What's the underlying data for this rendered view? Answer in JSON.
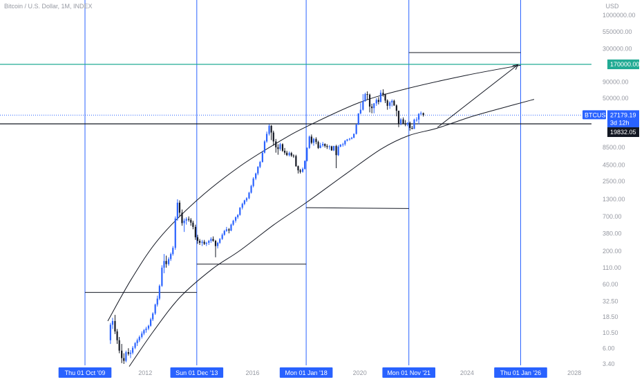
{
  "header": {
    "legend": "Bitcoin / U.S. Dollar, 1M, INDEX"
  },
  "chart_data": {
    "type": "candlestick",
    "title": "Bitcoin / U.S. Dollar, 1M, INDEX",
    "currency": "USD",
    "scale": "log",
    "y_ticks": [
      1000000,
      550000,
      300000,
      170000,
      90000,
      50000,
      27179.19,
      19832.05,
      8500,
      4500,
      2500,
      1300,
      700,
      380,
      200,
      110,
      60,
      32.5,
      18.5,
      10.5,
      6,
      3.4
    ],
    "y_tick_labels": [
      "1000000.00",
      "550000.00",
      "300000.00",
      "170000.00",
      "90000.00",
      "50000.00",
      "27179.19",
      "19832.05",
      "8500.00",
      "4500.00",
      "2500.00",
      "1300.00",
      "700.00",
      "380.00",
      "200.00",
      "110.00",
      "60.00",
      "32.50",
      "18.50",
      "10.50",
      "6.00",
      "3.40"
    ],
    "x_tick_labels": [
      {
        "label": "Thu 01 Oct '09",
        "year": 2009.75,
        "highlight": true
      },
      {
        "label": "2012",
        "year": 2012.0,
        "highlight": false
      },
      {
        "label": "Sun 01 Dec '13",
        "year": 2013.92,
        "highlight": true
      },
      {
        "label": "2016",
        "year": 2016.0,
        "highlight": false
      },
      {
        "label": "Mon 01 Jan '18",
        "year": 2018.0,
        "highlight": true
      },
      {
        "label": "2020",
        "year": 2020.0,
        "highlight": false
      },
      {
        "label": "Mon 01 Nov '21",
        "year": 2021.83,
        "highlight": true
      },
      {
        "label": "2024",
        "year": 2024.0,
        "highlight": false
      },
      {
        "label": "Thu 01 Jan '26",
        "year": 2026.0,
        "highlight": true
      },
      {
        "label": "2028",
        "year": 2028.0,
        "highlight": false
      }
    ],
    "current_price": {
      "symbol": "BTCUSD",
      "value": "27179.19",
      "countdown": "3d 12h"
    },
    "level_labels": [
      {
        "value": "170000.00",
        "color": "#22ab94"
      },
      {
        "value": "19832.05",
        "color": "#131722"
      }
    ],
    "annotations": {
      "vertical_dates": [
        2009.75,
        2013.92,
        2018.0,
        2021.83,
        2026.0
      ],
      "horizontal_levels": [
        {
          "price": 170000,
          "color": "#22ab94"
        },
        {
          "price": 19832.05,
          "color": "#131722"
        },
        {
          "price": 27179.19,
          "color": "#2962ff",
          "dotted": true
        }
      ],
      "segments": [
        {
          "x1": 2009.75,
          "y1": 45,
          "x2": 2013.92,
          "y2": 45
        },
        {
          "x1": 2013.92,
          "y1": 125,
          "x2": 2018.0,
          "y2": 125
        },
        {
          "x1": 2018.0,
          "y1": 960,
          "x2": 2021.83,
          "y2": 930
        },
        {
          "x1": 2021.83,
          "y1": 260000,
          "x2": 2026.0,
          "y2": 260000
        },
        {
          "x1": 2022.9,
          "y1": 17500,
          "x2": 2025.9,
          "y2": 168000,
          "arrow": true
        }
      ],
      "upper_curve": [
        [
          2010.6,
          16
        ],
        [
          2011.5,
          75
        ],
        [
          2012.5,
          310
        ],
        [
          2013.92,
          1250
        ],
        [
          2015.5,
          4200
        ],
        [
          2017.0,
          10500
        ],
        [
          2018.0,
          17800
        ],
        [
          2020.0,
          43000
        ],
        [
          2021.83,
          72000
        ],
        [
          2024.0,
          115000
        ],
        [
          2026.0,
          165000
        ]
      ],
      "lower_curve": [
        [
          2011.4,
          3.1
        ],
        [
          2012.3,
          11
        ],
        [
          2013.3,
          38
        ],
        [
          2014.5,
          105
        ],
        [
          2015.5,
          200
        ],
        [
          2016.8,
          520
        ],
        [
          2018.0,
          1150
        ],
        [
          2019.5,
          3300
        ],
        [
          2020.8,
          8000
        ],
        [
          2021.83,
          13000
        ],
        [
          2022.9,
          17000
        ],
        [
          2024.2,
          26000
        ],
        [
          2025.8,
          40000
        ],
        [
          2026.5,
          48000
        ]
      ]
    },
    "ohlc": [
      [
        2010.7,
        8,
        15,
        7,
        14
      ],
      [
        2010.78,
        14,
        18,
        12,
        16
      ],
      [
        2010.87,
        16,
        20,
        10,
        11
      ],
      [
        2010.95,
        11,
        12,
        7,
        8
      ],
      [
        2011.03,
        8,
        9,
        5,
        5.5
      ],
      [
        2011.12,
        5.5,
        7,
        3.5,
        4.2
      ],
      [
        2011.2,
        4.2,
        5,
        3.4,
        3.8
      ],
      [
        2011.28,
        3.8,
        5.5,
        3.6,
        5.2
      ],
      [
        2011.37,
        5.2,
        6,
        4.6,
        4.9
      ],
      [
        2011.45,
        4.9,
        5.6,
        4.2,
        5.1
      ],
      [
        2011.53,
        5.1,
        6.5,
        4.8,
        6.1
      ],
      [
        2011.62,
        6.1,
        7.5,
        5.8,
        7.2
      ],
      [
        2011.7,
        7.2,
        8.5,
        6.5,
        8.0
      ],
      [
        2011.78,
        8.0,
        9.5,
        7.5,
        9.0
      ],
      [
        2011.87,
        9.0,
        11,
        8.5,
        10.2
      ],
      [
        2011.95,
        10.2,
        12,
        9.6,
        11.5
      ],
      [
        2012.03,
        11.5,
        13,
        10.5,
        12.2
      ],
      [
        2012.12,
        12.2,
        14,
        11.5,
        13.5
      ],
      [
        2012.2,
        13.5,
        18,
        13,
        17
      ],
      [
        2012.28,
        17,
        22,
        16,
        21
      ],
      [
        2012.37,
        21,
        30,
        20,
        29
      ],
      [
        2012.45,
        29,
        40,
        27,
        36
      ],
      [
        2012.53,
        36,
        60,
        34,
        57
      ],
      [
        2012.62,
        57,
        120,
        55,
        110
      ],
      [
        2012.7,
        110,
        180,
        90,
        140
      ],
      [
        2012.78,
        140,
        170,
        110,
        125
      ],
      [
        2012.87,
        125,
        160,
        118,
        150
      ],
      [
        2012.95,
        150,
        190,
        140,
        180
      ],
      [
        2013.03,
        180,
        240,
        170,
        225
      ],
      [
        2013.12,
        225,
        700,
        210,
        650
      ],
      [
        2013.2,
        650,
        1300,
        600,
        1150
      ],
      [
        2013.28,
        1150,
        1250,
        700,
        800
      ],
      [
        2013.37,
        800,
        900,
        500,
        550
      ],
      [
        2013.45,
        550,
        650,
        400,
        600
      ],
      [
        2013.53,
        600,
        680,
        520,
        640
      ],
      [
        2013.62,
        640,
        700,
        580,
        620
      ],
      [
        2013.7,
        620,
        660,
        500,
        560
      ],
      [
        2013.78,
        560,
        600,
        440,
        480
      ],
      [
        2013.87,
        480,
        520,
        300,
        330
      ],
      [
        2013.95,
        330,
        360,
        260,
        290
      ],
      [
        2014.03,
        290,
        310,
        250,
        270
      ],
      [
        2014.12,
        270,
        300,
        240,
        280
      ],
      [
        2014.2,
        280,
        300,
        250,
        260
      ],
      [
        2014.28,
        260,
        280,
        240,
        270
      ],
      [
        2014.37,
        270,
        300,
        250,
        290
      ],
      [
        2014.45,
        290,
        330,
        270,
        310
      ],
      [
        2014.53,
        310,
        340,
        280,
        290
      ],
      [
        2014.62,
        290,
        300,
        160,
        240
      ],
      [
        2014.7,
        240,
        280,
        220,
        270
      ],
      [
        2014.78,
        270,
        320,
        260,
        310
      ],
      [
        2014.87,
        310,
        380,
        300,
        360
      ],
      [
        2014.95,
        360,
        430,
        350,
        415
      ],
      [
        2015.03,
        415,
        480,
        400,
        440
      ],
      [
        2015.12,
        440,
        460,
        380,
        420
      ],
      [
        2015.2,
        420,
        540,
        410,
        520
      ],
      [
        2015.28,
        520,
        620,
        500,
        600
      ],
      [
        2015.37,
        600,
        700,
        560,
        680
      ],
      [
        2015.45,
        680,
        760,
        640,
        740
      ],
      [
        2015.53,
        740,
        980,
        720,
        960
      ],
      [
        2015.62,
        960,
        1150,
        900,
        1100
      ],
      [
        2015.7,
        1100,
        1280,
        1050,
        1250
      ],
      [
        2015.78,
        1250,
        1400,
        1180,
        1350
      ],
      [
        2015.87,
        1350,
        1700,
        1300,
        1650
      ],
      [
        2015.95,
        1650,
        2200,
        1600,
        2100
      ],
      [
        2016.03,
        2100,
        2900,
        2000,
        2750
      ],
      [
        2016.12,
        2750,
        3400,
        2600,
        3300
      ],
      [
        2016.2,
        3300,
        4300,
        3100,
        4200
      ],
      [
        2016.28,
        4200,
        5200,
        4000,
        5000
      ],
      [
        2016.37,
        5000,
        7500,
        4900,
        7000
      ],
      [
        2016.45,
        7000,
        11000,
        6800,
        10500
      ],
      [
        2016.53,
        10500,
        15000,
        10000,
        13800
      ],
      [
        2016.62,
        13800,
        19500,
        13000,
        18500
      ],
      [
        2016.7,
        18500,
        19000,
        11000,
        14500
      ],
      [
        2016.78,
        14500,
        15500,
        9000,
        10500
      ],
      [
        2016.87,
        10500,
        11500,
        7000,
        8500
      ],
      [
        2016.95,
        8500,
        9500,
        6500,
        8000
      ],
      [
        2017.03,
        8000,
        10000,
        7500,
        9500
      ],
      [
        2017.12,
        9500,
        9800,
        7200,
        7500
      ],
      [
        2017.2,
        7500,
        8300,
        6500,
        7000
      ],
      [
        2017.28,
        7000,
        7500,
        6200,
        6400
      ],
      [
        2017.37,
        6400,
        7300,
        6100,
        6900
      ],
      [
        2017.45,
        6900,
        7200,
        6000,
        6300
      ],
      [
        2017.53,
        6300,
        6600,
        5800,
        6200
      ],
      [
        2017.62,
        6200,
        6500,
        4200,
        4300
      ],
      [
        2017.7,
        4300,
        4400,
        3300,
        3700
      ],
      [
        2017.78,
        3700,
        3900,
        3300,
        3500
      ],
      [
        2017.87,
        3500,
        4100,
        3400,
        3900
      ],
      [
        2017.95,
        3900,
        5300,
        3800,
        5200
      ],
      [
        2018.03,
        5200,
        8500,
        5100,
        8300
      ],
      [
        2018.12,
        8300,
        13000,
        8000,
        12500
      ],
      [
        2018.2,
        12500,
        13500,
        9500,
        10000
      ],
      [
        2018.28,
        10000,
        12000,
        9000,
        11500
      ],
      [
        2018.37,
        11500,
        12200,
        9500,
        10300
      ],
      [
        2018.45,
        10300,
        10800,
        8000,
        8300
      ],
      [
        2018.53,
        8300,
        10000,
        8200,
        9100
      ],
      [
        2018.62,
        9100,
        10300,
        8600,
        9600
      ],
      [
        2018.7,
        9600,
        9800,
        8400,
        8900
      ],
      [
        2018.78,
        8900,
        9500,
        8000,
        8600
      ],
      [
        2018.87,
        8600,
        9200,
        7800,
        8800
      ],
      [
        2018.95,
        8800,
        9000,
        7500,
        7600
      ],
      [
        2019.03,
        7600,
        9000,
        7400,
        8900
      ],
      [
        2019.12,
        8900,
        9300,
        4000,
        6400
      ],
      [
        2019.2,
        6400,
        9200,
        6200,
        8700
      ],
      [
        2019.28,
        8700,
        9500,
        8500,
        9400
      ],
      [
        2019.37,
        9400,
        10000,
        8700,
        9500
      ],
      [
        2019.45,
        9500,
        11000,
        9000,
        10800
      ],
      [
        2019.53,
        10800,
        11500,
        10500,
        11300
      ],
      [
        2019.62,
        11300,
        11900,
        10800,
        11600
      ],
      [
        2019.7,
        11600,
        12400,
        11300,
        12000
      ],
      [
        2019.78,
        12000,
        14000,
        11800,
        13800
      ],
      [
        2019.87,
        13800,
        19800,
        13500,
        19300
      ],
      [
        2019.95,
        19300,
        29000,
        19000,
        28900
      ],
      [
        2020.03,
        28900,
        42000,
        28000,
        33000
      ],
      [
        2020.12,
        33000,
        58000,
        32000,
        45000
      ],
      [
        2020.2,
        45000,
        61000,
        44000,
        58000
      ],
      [
        2020.28,
        58000,
        64000,
        47000,
        57000
      ],
      [
        2020.37,
        57000,
        59000,
        30000,
        37000
      ],
      [
        2020.45,
        37000,
        41000,
        29000,
        35000
      ],
      [
        2020.53,
        35000,
        42000,
        29000,
        41500
      ],
      [
        2020.62,
        41500,
        50000,
        38000,
        47000
      ],
      [
        2020.7,
        47000,
        52000,
        40000,
        43800
      ],
      [
        2020.78,
        43800,
        67000,
        43000,
        61000
      ],
      [
        2020.87,
        61000,
        69000,
        53000,
        57000
      ],
      [
        2020.95,
        57000,
        59000,
        42000,
        46000
      ],
      [
        2021.03,
        46000,
        48000,
        33000,
        38000
      ],
      [
        2021.12,
        38000,
        45000,
        34000,
        43000
      ],
      [
        2021.2,
        43000,
        48000,
        37000,
        45500
      ],
      [
        2021.28,
        45500,
        47500,
        38000,
        38500
      ],
      [
        2021.37,
        38500,
        40000,
        26000,
        31800
      ],
      [
        2021.45,
        31800,
        32000,
        17600,
        19900
      ],
      [
        2021.53,
        19900,
        24500,
        18800,
        23300
      ],
      [
        2021.62,
        23300,
        25000,
        19600,
        20100
      ],
      [
        2021.7,
        20100,
        22700,
        18200,
        19400
      ],
      [
        2021.78,
        19400,
        21000,
        18200,
        20500
      ],
      [
        2021.87,
        20500,
        21500,
        15500,
        17100
      ],
      [
        2021.95,
        17100,
        18400,
        16300,
        16500
      ],
      [
        2022.03,
        16500,
        23900,
        16500,
        23100
      ],
      [
        2022.12,
        23100,
        25200,
        21400,
        23100
      ],
      [
        2022.2,
        23100,
        29200,
        19500,
        28400
      ],
      [
        2022.28,
        28400,
        31000,
        26900,
        29200
      ],
      [
        2022.37,
        29200,
        29800,
        25800,
        27200
      ]
    ]
  }
}
